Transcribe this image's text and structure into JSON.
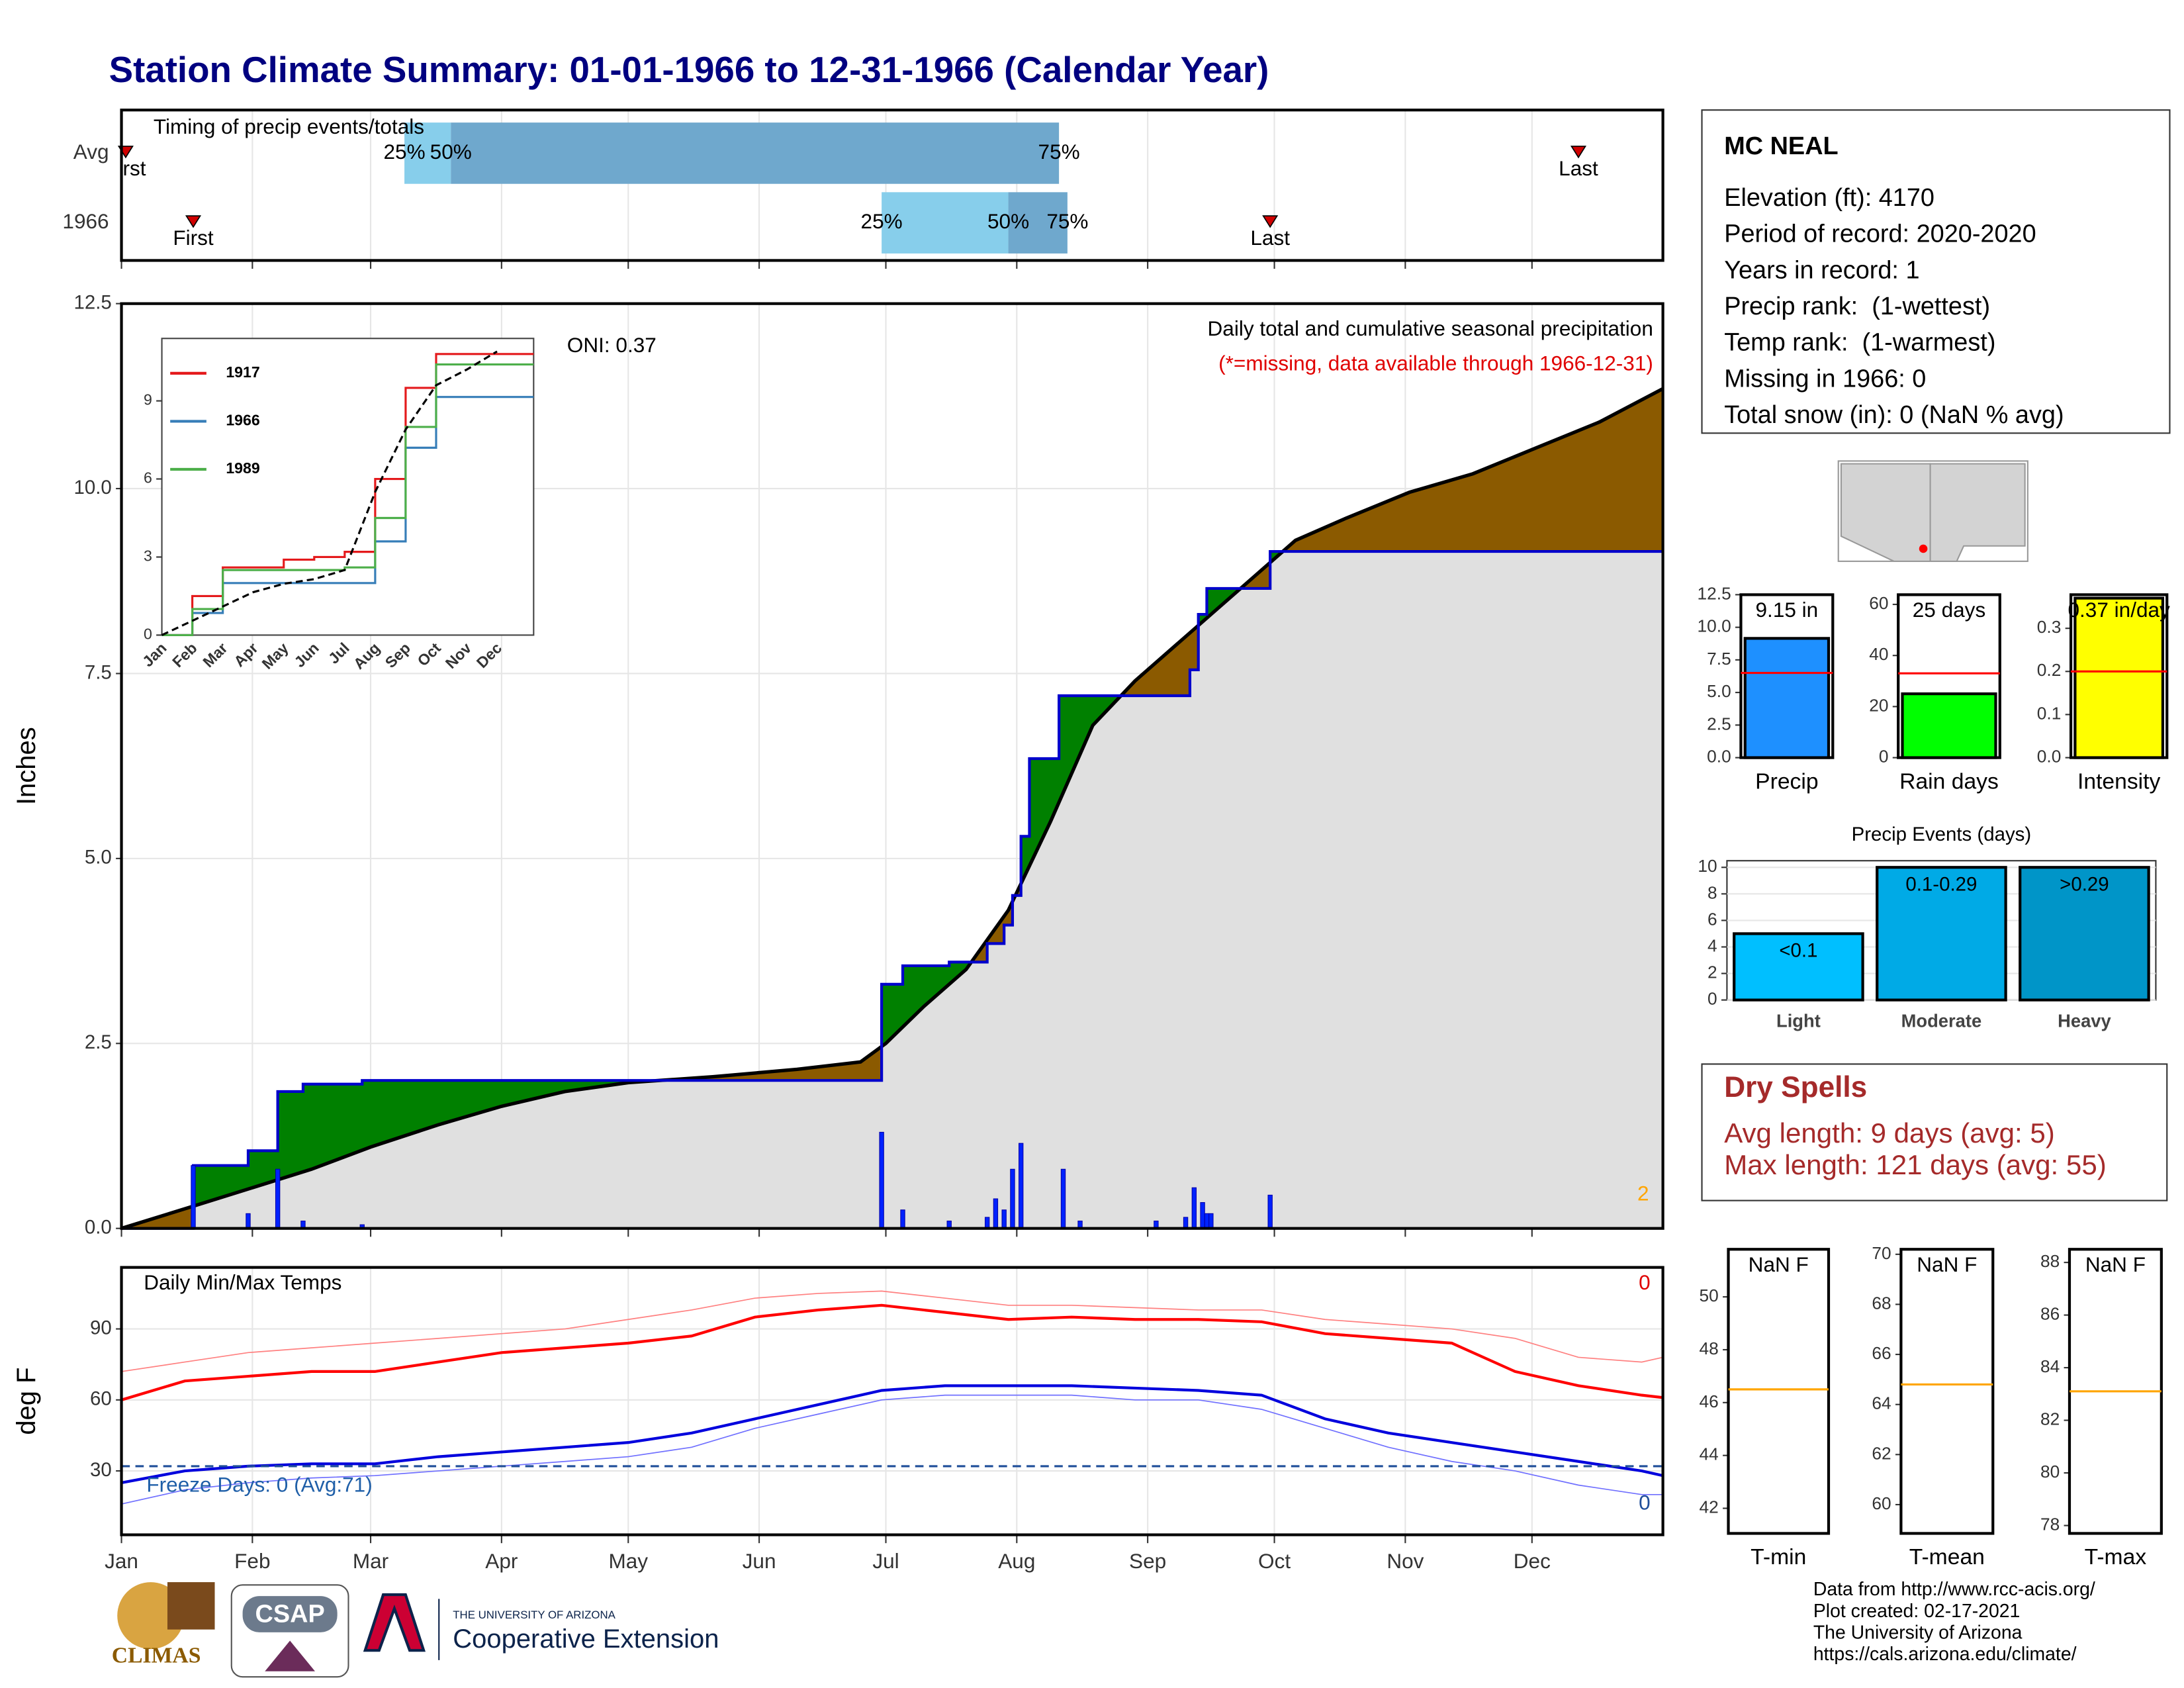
{
  "title": "Station Climate Summary: 01-01-1966 to 12-31-1966 (Calendar Year)",
  "chart_data": [
    {
      "type": "timing",
      "title": "Timing of precip events/totals",
      "categories": [
        "Avg",
        "1966"
      ],
      "xlim": [
        0,
        365
      ],
      "rows": [
        {
          "first": 1,
          "q25": 67,
          "q50": 78,
          "q75": 222,
          "last": 345
        },
        {
          "first": 17,
          "q25": 180,
          "q50": 210,
          "q75": 224,
          "last": 272
        }
      ],
      "labels": {
        "first": "First",
        "last": "Last",
        "q25": "25%",
        "q50": "50%",
        "q75": "75%"
      },
      "band_colors": [
        "#87ceeb",
        "#6fa8cd"
      ],
      "marker_color": "#d00000"
    },
    {
      "type": "area",
      "title": "Daily total and cumulative seasonal precipitation",
      "subtitle": "(*=missing, data available through 1966-12-31)",
      "annotation": "ONI: 0.37",
      "corner_note": "2",
      "ylabel": "Inches",
      "xlim": [
        0,
        365
      ],
      "ylim": [
        0,
        12.5
      ],
      "yticks": [
        {
          "value": 0,
          "label": "0.0"
        },
        2.5,
        {
          "value": 5,
          "label": "5.0"
        },
        7.5,
        {
          "value": 10,
          "label": "10.0"
        },
        12.5
      ],
      "grid": true,
      "average": {
        "x": [
          0,
          17,
          31,
          45,
          59,
          75,
          90,
          105,
          120,
          140,
          160,
          175,
          181,
          190,
          200,
          210,
          220,
          230,
          240,
          250,
          258,
          268,
          278,
          290,
          305,
          320,
          335,
          350,
          365
        ],
        "values": [
          0,
          0.3,
          0.55,
          0.8,
          1.1,
          1.4,
          1.65,
          1.85,
          1.97,
          2.05,
          2.15,
          2.25,
          2.5,
          3.0,
          3.5,
          4.3,
          5.5,
          6.8,
          7.4,
          7.9,
          8.3,
          8.8,
          9.3,
          9.6,
          9.95,
          10.2,
          10.55,
          10.9,
          11.35
        ],
        "color": "#000000"
      },
      "year": {
        "x": [
          0,
          17,
          30,
          37,
          43,
          57,
          180,
          185,
          196,
          205,
          209,
          211,
          213,
          215,
          222,
          253,
          255,
          257,
          272,
          365
        ],
        "values": [
          0,
          0.85,
          1.05,
          1.85,
          1.95,
          2.0,
          3.3,
          3.55,
          3.6,
          3.85,
          4.1,
          4.5,
          5.3,
          6.35,
          7.2,
          7.55,
          8.3,
          8.65,
          9.15,
          9.15
        ],
        "color": "#0000cc",
        "step": true
      },
      "daily": {
        "x": [
          17,
          30,
          37,
          43,
          57,
          180,
          185,
          196,
          205,
          207,
          209,
          211,
          213,
          223,
          227,
          245,
          252,
          254,
          256,
          257,
          258,
          272
        ],
        "values": [
          0.85,
          0.2,
          0.8,
          0.1,
          0.05,
          1.3,
          0.25,
          0.1,
          0.15,
          0.4,
          0.25,
          0.8,
          1.15,
          0.8,
          0.1,
          0.1,
          0.15,
          0.55,
          0.35,
          0.2,
          0.2,
          0.45
        ],
        "color": "#0022ff"
      },
      "above_color": "#008000",
      "below_color": "#8b5a00",
      "base_color": "#e0e0e0"
    },
    {
      "type": "line",
      "categories": [
        "Jan",
        "Feb",
        "Mar",
        "Apr",
        "May",
        "Jun",
        "Jul",
        "Aug",
        "Sep",
        "Oct",
        "Nov",
        "Dec"
      ],
      "ylim": [
        0,
        11.4
      ],
      "yticks": [
        0,
        3,
        6,
        9
      ],
      "series": [
        {
          "name": "1917",
          "color": "#e41a1c",
          "values": [
            0,
            1.5,
            2.6,
            2.6,
            2.9,
            3.0,
            3.2,
            6.0,
            9.5,
            10.8,
            10.8,
            10.8
          ]
        },
        {
          "name": "1966",
          "color": "#377eb8",
          "values": [
            0,
            0.85,
            2.0,
            2.0,
            2.0,
            2.0,
            2.0,
            3.6,
            7.2,
            9.15,
            9.15,
            9.15
          ]
        },
        {
          "name": "1989",
          "color": "#4daf4a",
          "values": [
            0,
            1.0,
            2.5,
            2.5,
            2.5,
            2.5,
            2.6,
            4.5,
            8.0,
            10.4,
            10.4,
            10.4
          ]
        }
      ],
      "average": {
        "values": [
          0,
          0.55,
          1.1,
          1.65,
          1.97,
          2.15,
          2.5,
          5.5,
          7.9,
          9.6,
          10.2,
          10.9
        ],
        "color": "#000000"
      }
    },
    {
      "type": "line",
      "title": "Daily Min/Max Temps",
      "ylabel": "deg F",
      "xlim": [
        0,
        365
      ],
      "xticks": [
        {
          "value": 0,
          "label": "Jan"
        },
        {
          "value": 31,
          "label": "Feb"
        },
        {
          "value": 59,
          "label": "Mar"
        },
        {
          "value": 90,
          "label": "Apr"
        },
        {
          "value": 120,
          "label": "May"
        },
        {
          "value": 151,
          "label": "Jun"
        },
        {
          "value": 181,
          "label": "Jul"
        },
        {
          "value": 212,
          "label": "Aug"
        },
        {
          "value": 243,
          "label": "Sep"
        },
        {
          "value": 273,
          "label": "Oct"
        },
        {
          "value": 304,
          "label": "Nov"
        },
        {
          "value": 334,
          "label": "Dec"
        }
      ],
      "ylim": [
        3,
        116
      ],
      "yticks": [
        30,
        60,
        90
      ],
      "grid": true,
      "freeze_line": 32,
      "freeze_color": "#1f4e99",
      "annotation": "Freeze Days: 0 (Avg:71)",
      "max_note": "0",
      "min_note": "0",
      "x": [
        0,
        15,
        30,
        45,
        60,
        75,
        90,
        105,
        120,
        135,
        150,
        165,
        180,
        195,
        210,
        225,
        240,
        255,
        270,
        285,
        300,
        315,
        330,
        345,
        360,
        365
      ],
      "series": [
        {
          "color": "#ff8080",
          "width": 0.8,
          "values": [
            72,
            76,
            80,
            82,
            84,
            86,
            88,
            90,
            94,
            98,
            103,
            105,
            106,
            103,
            100,
            100,
            99,
            98,
            98,
            94,
            92,
            90,
            86,
            78,
            76,
            78
          ]
        },
        {
          "color": "#ff0000",
          "width": 2,
          "values": [
            60,
            68,
            70,
            72,
            72,
            76,
            80,
            82,
            84,
            87,
            95,
            98,
            100,
            97,
            94,
            95,
            94,
            94,
            93,
            88,
            86,
            84,
            72,
            66,
            62,
            61
          ]
        },
        {
          "color": "#7070ff",
          "width": 0.8,
          "values": [
            16,
            22,
            25,
            27,
            28,
            30,
            32,
            34,
            36,
            40,
            48,
            54,
            60,
            62,
            62,
            62,
            60,
            60,
            56,
            48,
            40,
            34,
            30,
            24,
            20,
            20
          ]
        },
        {
          "color": "#0000dd",
          "width": 2,
          "values": [
            25,
            30,
            32,
            33,
            33,
            36,
            38,
            40,
            42,
            46,
            52,
            58,
            64,
            66,
            66,
            66,
            65,
            64,
            62,
            52,
            46,
            42,
            38,
            34,
            30,
            28
          ]
        }
      ]
    },
    {
      "type": "bar",
      "categories": [
        "Precip"
      ],
      "values": [
        9.15
      ],
      "value_labels": [
        "9.15 in"
      ],
      "color": "#1e90ff",
      "ylim": [
        0,
        12.5
      ],
      "yticks": [
        {
          "value": 0,
          "label": "0.0"
        },
        2.5,
        {
          "value": 5,
          "label": "5.0"
        },
        7.5,
        {
          "value": 10,
          "label": "10.0"
        },
        12.5
      ],
      "avg_line": 6.5,
      "avg_color": "#ff0000"
    },
    {
      "type": "bar",
      "categories": [
        "Rain days"
      ],
      "values": [
        25
      ],
      "value_labels": [
        "25 days"
      ],
      "color": "#00ff00",
      "ylim": [
        0,
        63.8
      ],
      "yticks": [
        0,
        20,
        40,
        60
      ],
      "avg_line": 33,
      "avg_color": "#ff0000"
    },
    {
      "type": "bar",
      "categories": [
        "Intensity"
      ],
      "values": [
        0.37
      ],
      "value_labels": [
        "0.37 in/day"
      ],
      "color": "#ffff00",
      "ylim": [
        0,
        0.378
      ],
      "yticks": [
        {
          "value": 0,
          "label": "0.0"
        },
        0.1,
        0.2,
        0.3
      ],
      "avg_line": 0.2,
      "avg_color": "#ff0000"
    },
    {
      "type": "bar",
      "title": "Precip Events (days)",
      "categories": [
        "Light",
        "Moderate",
        "Heavy"
      ],
      "values": [
        5,
        10,
        10
      ],
      "bin_labels": [
        "<0.1",
        "0.1-0.29",
        ">0.29"
      ],
      "colors": [
        "#00bfff",
        "#00aae6",
        "#0095c8"
      ],
      "ylim": [
        0,
        10.5
      ],
      "yticks": [
        0,
        2,
        4,
        6,
        8,
        10
      ],
      "grid": true
    },
    {
      "type": "bar",
      "categories": [
        "T-min"
      ],
      "values": [
        null
      ],
      "value_labels": [
        "NaN F"
      ],
      "ylim": [
        41.05,
        51.8
      ],
      "yticks": [
        42,
        44,
        46,
        48,
        50
      ],
      "avg_line": 46.5,
      "avg_color": "#ffa500"
    },
    {
      "type": "bar",
      "categories": [
        "T-mean"
      ],
      "values": [
        null
      ],
      "value_labels": [
        "NaN F"
      ],
      "ylim": [
        58.85,
        70.2
      ],
      "yticks": [
        60,
        62,
        64,
        66,
        68,
        70
      ],
      "avg_line": 64.8,
      "avg_color": "#ffa500"
    },
    {
      "type": "bar",
      "categories": [
        "T-max"
      ],
      "values": [
        null
      ],
      "value_labels": [
        "NaN F"
      ],
      "ylim": [
        77.7,
        88.5
      ],
      "yticks": [
        78,
        80,
        82,
        84,
        86,
        88
      ],
      "avg_line": 83.1,
      "avg_color": "#ffa500"
    }
  ],
  "station": {
    "name": "MC NEAL",
    "lines": [
      "Elevation (ft): 4170",
      "Period of record: 2020-2020",
      "Years in record: 1",
      "Precip rank:  (1-wettest)",
      "Temp rank:  (1-warmest)",
      "Missing in 1966: 0",
      "Total snow (in): 0 (NaN % avg)"
    ]
  },
  "dry_spells": {
    "title": "Dry Spells",
    "lines": [
      "Avg length: 9 days (avg: 5)",
      "Max length: 121 days (avg: 55)"
    ]
  },
  "credits": [
    "Data from http://www.rcc-acis.org/",
    "Plot created: 02-17-2021",
    "The University of Arizona",
    "https://cals.arizona.edu/climate/"
  ],
  "logos": {
    "climas": "CLIMAS",
    "csap": "CSAP",
    "university": "THE UNIVERSITY OF ARIZONA",
    "extension": "Cooperative Extension"
  }
}
